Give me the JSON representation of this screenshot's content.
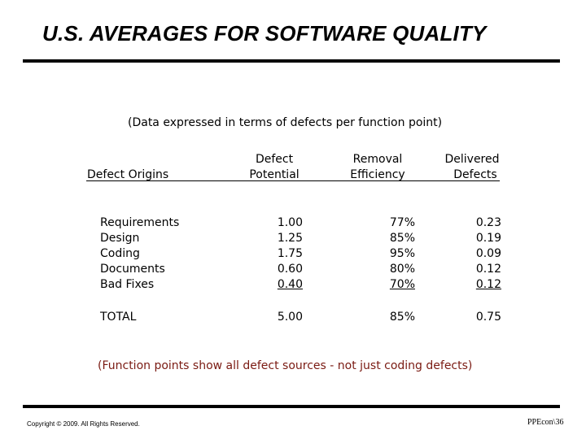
{
  "title": "U.S. AVERAGES FOR SOFTWARE QUALITY",
  "subtitle": "(Data expressed in terms of defects per function point)",
  "headers": {
    "origins": "Defect Origins",
    "potential_1": "Defect",
    "potential_2": "Potential",
    "removal_1": "Removal",
    "removal_2": "Efficiency",
    "delivered_1": "Delivered",
    "delivered_2": "Defects"
  },
  "rows": [
    {
      "origin": "Requirements",
      "potential": "1.00",
      "efficiency": "77%",
      "delivered": "0.23"
    },
    {
      "origin": "Design",
      "potential": "1.25",
      "efficiency": "85%",
      "delivered": "0.19"
    },
    {
      "origin": "Coding",
      "potential": "1.75",
      "efficiency": "95%",
      "delivered": "0.09"
    },
    {
      "origin": "Documents",
      "potential": "0.60",
      "efficiency": "80%",
      "delivered": "0.12"
    },
    {
      "origin": "Bad Fixes",
      "potential": "0.40",
      "efficiency": "70%",
      "delivered": "0.12"
    }
  ],
  "total": {
    "origin": "TOTAL",
    "potential": "5.00",
    "efficiency": "85%",
    "delivered": "0.75"
  },
  "note": "(Function points show all defect sources - not just coding defects)",
  "footer": {
    "copyright": "Copyright © 2009. All Rights Reserved.",
    "page_ref": "PPEcon\\36"
  },
  "colors": {
    "note": "#7a1a12"
  }
}
